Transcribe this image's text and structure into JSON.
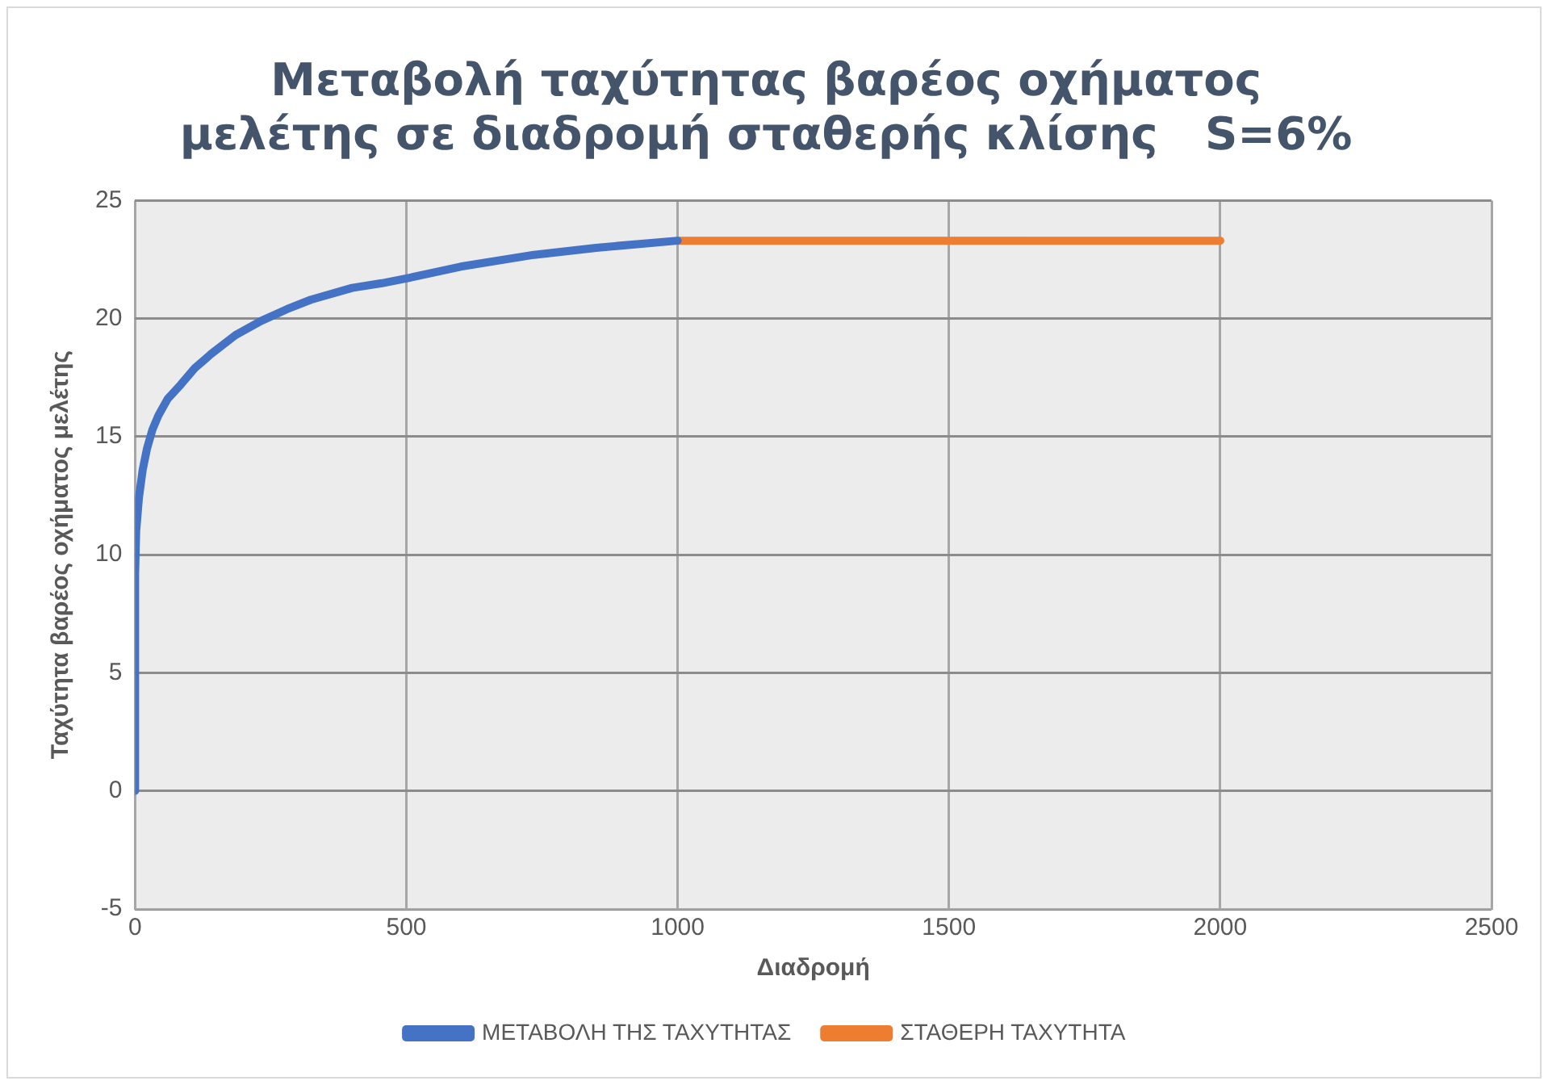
{
  "chart_data": {
    "type": "line",
    "title": "Μεταβολή ταχύτητας βαρέος οχήματος μελέτης σε διαδρομή σταθερής κλίσης   S=6%",
    "xlabel": "Διαδρομή",
    "ylabel": "Ταχύτητα βαρέος οχήματος μελέτης",
    "series": [
      {
        "name": "ΜΕΤΑΒΟΛΗ ΤΗΣ ΤΑΧΥΤΗΤΑΣ",
        "color": "#4472c4",
        "x": [
          0,
          0,
          2,
          7,
          14,
          22,
          32,
          43,
          60,
          84,
          110,
          140,
          185,
          232,
          280,
          324,
          400,
          455,
          500,
          600,
          735,
          850,
          1000
        ],
        "values": [
          0,
          9.2,
          11,
          12.4,
          13.6,
          14.5,
          15.3,
          15.9,
          16.6,
          17.2,
          17.9,
          18.5,
          19.3,
          19.9,
          20.4,
          20.8,
          21.3,
          21.5,
          21.7,
          22.2,
          22.7,
          23.0,
          23.3
        ]
      },
      {
        "name": "ΣΤΑΘΕΡΗ ΤΑΧΥΤΗΤΑ",
        "color": "#ed7d31",
        "x": [
          1000,
          2000
        ],
        "values": [
          23.3,
          23.3
        ]
      }
    ],
    "xlim": [
      0,
      2500
    ],
    "xticks": [
      0,
      500,
      1000,
      1500,
      2000,
      2500
    ],
    "ylim": [
      -5,
      25
    ],
    "yticks": [
      -5,
      0,
      5,
      10,
      15,
      20,
      25
    ],
    "grid": true,
    "legend": "bottom",
    "marker": "none",
    "line_style": "solid"
  }
}
